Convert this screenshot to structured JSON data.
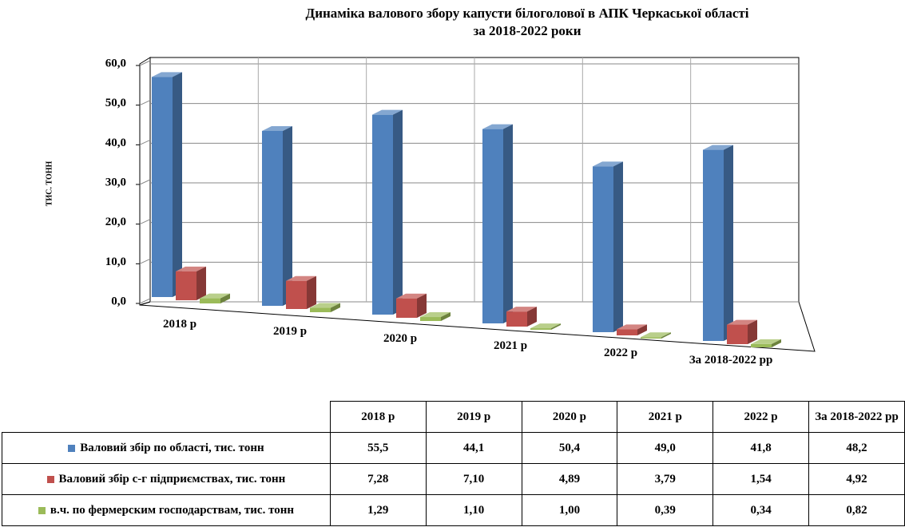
{
  "chart_data": {
    "type": "bar3d",
    "title": [
      "Динаміка валового збору капусти білоголової в АПК Черкаської області",
      "за 2018-2022 роки"
    ],
    "y_label": "ТИС. ТОНН",
    "categories": [
      "2018 р",
      "2019 р",
      "2020 р",
      "2021 р",
      "2022 р",
      "За 2018-2022 рр"
    ],
    "series": [
      {
        "name": "Валовий збір по області, тис. тонн",
        "color": "#4f81bd",
        "values": [
          55.5,
          44.1,
          50.4,
          49.0,
          41.8,
          48.2
        ],
        "value_labels": [
          "55,5",
          "44,1",
          "50,4",
          "49,0",
          "41,8",
          "48,2"
        ]
      },
      {
        "name": "Валовий збір с-г підприємствах, тис. тонн",
        "color": "#c0504d",
        "values": [
          7.28,
          7.1,
          4.89,
          3.79,
          1.54,
          4.92
        ],
        "value_labels": [
          "7,28",
          "7,10",
          "4,89",
          "3,79",
          "1,54",
          "4,92"
        ]
      },
      {
        "name": "в.ч. по фермерским господарствам, тис. тонн",
        "color": "#9bbb59",
        "values": [
          1.29,
          1.1,
          1.0,
          0.39,
          0.34,
          0.82
        ],
        "value_labels": [
          "1,29",
          "1,10",
          "1,00",
          "0,39",
          "0,34",
          "0,82"
        ]
      }
    ],
    "ylim": [
      0,
      60
    ],
    "yticks": [
      {
        "value": 0,
        "label": "0,0"
      },
      {
        "value": 10,
        "label": "10,0"
      },
      {
        "value": 20,
        "label": "20,0"
      },
      {
        "value": 30,
        "label": "30,0"
      },
      {
        "value": 40,
        "label": "40,0"
      },
      {
        "value": 50,
        "label": "50,0"
      },
      {
        "value": 60,
        "label": "60,0"
      }
    ],
    "grid": true
  }
}
